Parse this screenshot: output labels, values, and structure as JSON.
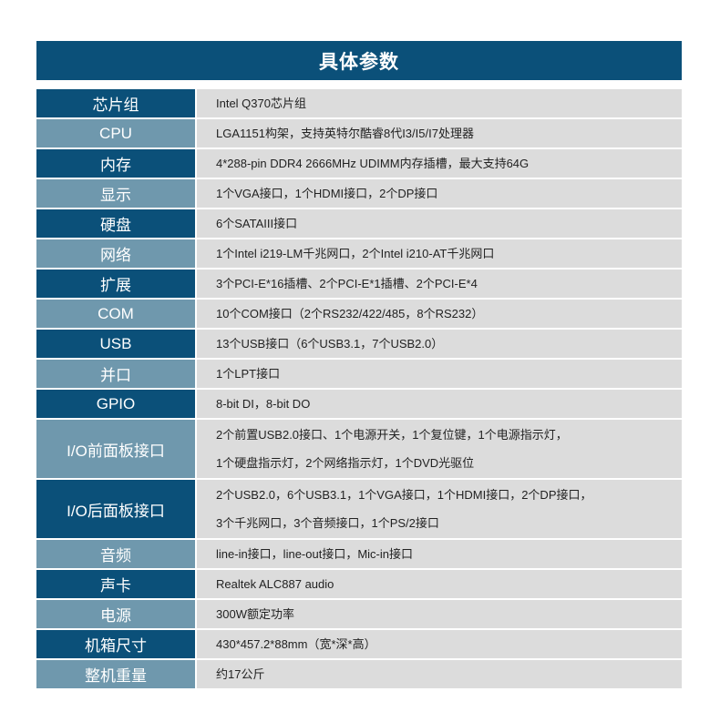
{
  "title": "具体参数",
  "rows": [
    {
      "label": "芯片组",
      "lines": [
        "Intel Q370芯片组"
      ]
    },
    {
      "label": "CPU",
      "lines": [
        "LGA1151构架，支持英特尔酷睿8代I3/I5/I7处理器"
      ]
    },
    {
      "label": "内存",
      "lines": [
        "4*288-pin DDR4 2666MHz  UDIMM内存插槽，最大支持64G"
      ]
    },
    {
      "label": "显示",
      "lines": [
        "1个VGA接口，1个HDMI接口，2个DP接口"
      ]
    },
    {
      "label": "硬盘",
      "lines": [
        "6个SATAIII接口"
      ]
    },
    {
      "label": "网络",
      "lines": [
        "1个Intel i219-LM千兆网口，2个Intel i210-AT千兆网口"
      ]
    },
    {
      "label": "扩展",
      "lines": [
        "3个PCI-E*16插槽、2个PCI-E*1插槽、2个PCI-E*4"
      ]
    },
    {
      "label": "COM",
      "lines": [
        "10个COM接口（2个RS232/422/485，8个RS232）"
      ]
    },
    {
      "label": "USB",
      "lines": [
        "13个USB接口（6个USB3.1，7个USB2.0）"
      ]
    },
    {
      "label": "并口",
      "lines": [
        "1个LPT接口"
      ]
    },
    {
      "label": "GPIO",
      "lines": [
        "8-bit DI，8-bit DO"
      ]
    },
    {
      "label": "I/O前面板接口",
      "lines": [
        "2个前置USB2.0接口、1个电源开关，1个复位键，1个电源指示灯，",
        "1个硬盘指示灯，2个网络指示灯，1个DVD光驱位"
      ]
    },
    {
      "label": "I/O后面板接口",
      "lines": [
        "2个USB2.0，6个USB3.1，1个VGA接口，1个HDMI接口，2个DP接口，",
        "3个千兆网口，3个音频接口，1个PS/2接口"
      ]
    },
    {
      "label": "音频",
      "lines": [
        "line-in接口，line-out接口，Mic-in接口"
      ]
    },
    {
      "label": "声卡",
      "lines": [
        "Realtek  ALC887 audio"
      ]
    },
    {
      "label": "电源",
      "lines": [
        "300W额定功率"
      ]
    },
    {
      "label": "机箱尺寸",
      "lines": [
        "430*457.2*88mm（宽*深*高）"
      ]
    },
    {
      "label": "整机重量",
      "lines": [
        "约17公斤"
      ]
    }
  ]
}
